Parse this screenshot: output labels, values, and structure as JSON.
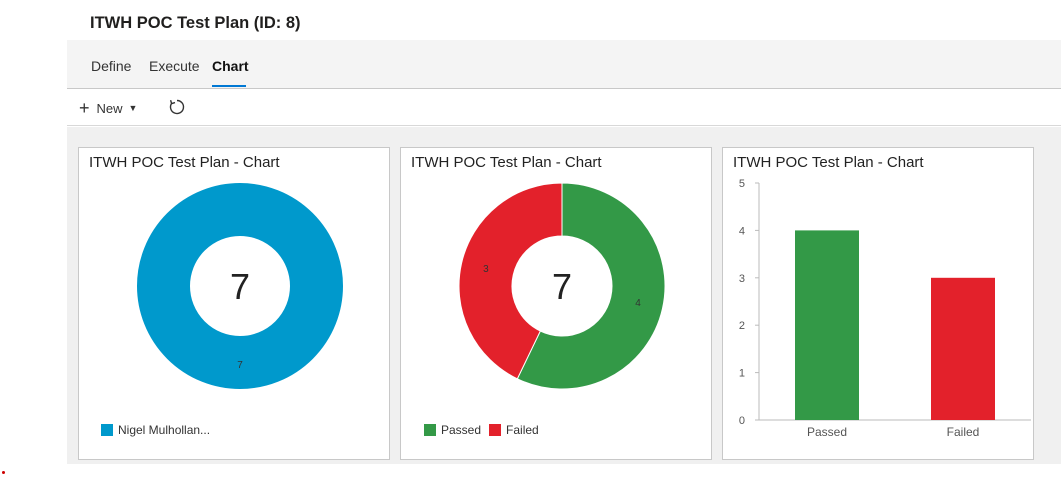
{
  "plan": {
    "title": "ITWH POC Test Plan (ID: 8)"
  },
  "tabs": [
    {
      "label": "Define"
    },
    {
      "label": "Execute"
    },
    {
      "label": "Chart",
      "active": true
    }
  ],
  "toolbar": {
    "new_label": "New",
    "new_icon": "plus-icon",
    "refresh_icon": "refresh-icon"
  },
  "colors": {
    "owner": "#0099cc",
    "passed": "#339947",
    "failed": "#e3212b",
    "accent": "#0078d4"
  },
  "cards": [
    {
      "title": "ITWH POC Test Plan - Chart"
    },
    {
      "title": "ITWH POC Test Plan - Chart"
    },
    {
      "title": "ITWH POC Test Plan - Chart"
    }
  ],
  "chart_data": [
    {
      "type": "pie",
      "title": "ITWH POC Test Plan - Chart",
      "center_label": "7",
      "categories": [
        "Nigel Mulhollan..."
      ],
      "values": [
        7
      ],
      "data_labels": [
        "7"
      ],
      "legend": [
        "Nigel Mulhollan..."
      ]
    },
    {
      "type": "pie",
      "title": "ITWH POC Test Plan - Chart",
      "center_label": "7",
      "categories": [
        "Passed",
        "Failed"
      ],
      "values": [
        4,
        3
      ],
      "data_labels": [
        "4",
        "3"
      ],
      "legend": [
        "Passed",
        "Failed"
      ]
    },
    {
      "type": "bar",
      "title": "ITWH POC Test Plan - Chart",
      "categories": [
        "Passed",
        "Failed"
      ],
      "values": [
        4,
        3
      ],
      "ylim": [
        0,
        5
      ],
      "yticks": [
        "0",
        "1",
        "2",
        "3",
        "4",
        "5"
      ],
      "grid": false
    }
  ]
}
